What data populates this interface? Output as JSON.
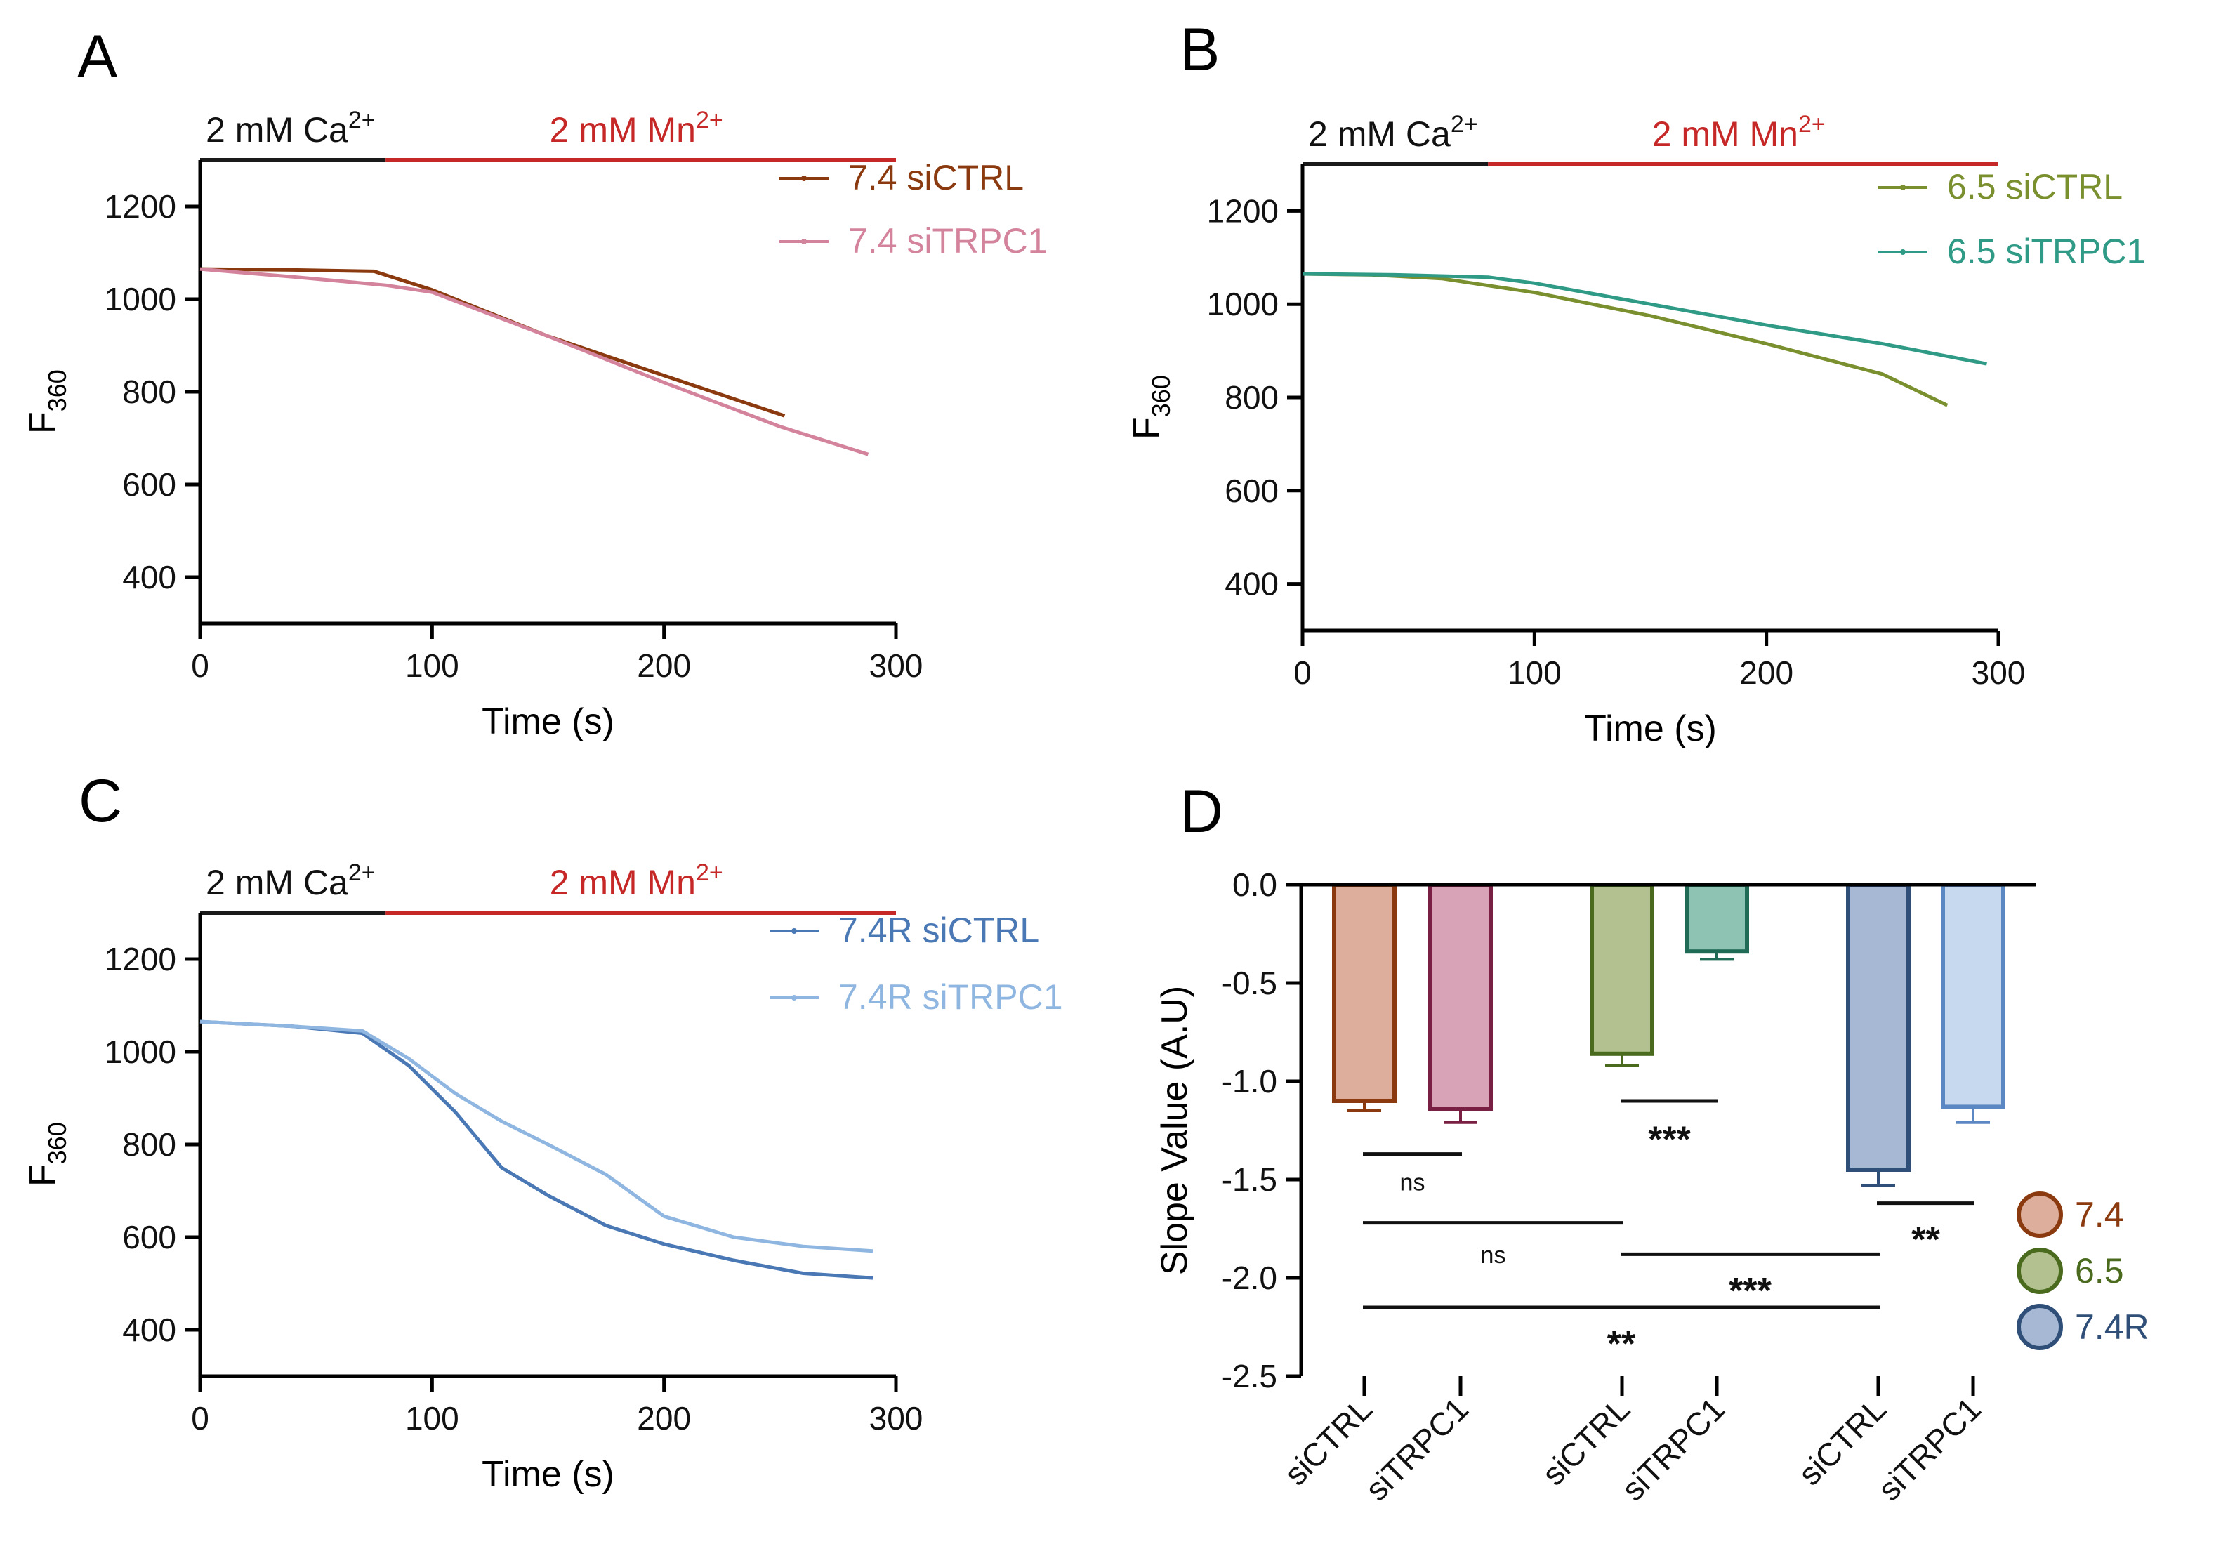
{
  "figure": {
    "panels": [
      {
        "letter": "A",
        "treatment": {
          "ca_prefix": "2 mM Ca",
          "ca_sup": "2+",
          "mn_prefix": "2 mM Mn",
          "mn_sup": "2+"
        },
        "colors": {
          "ca_bar": "#1a1a1a",
          "mn_bar": "#c62828",
          "mn_text": "#c62828"
        }
      },
      {
        "letter": "B",
        "treatment": {
          "ca_prefix": "2 mM Ca",
          "ca_sup": "2+",
          "mn_prefix": "2 mM Mn",
          "mn_sup": "2+"
        },
        "colors": {
          "ca_bar": "#1a1a1a",
          "mn_bar": "#c62828",
          "mn_text": "#c62828"
        }
      },
      {
        "letter": "C",
        "treatment": {
          "ca_prefix": "2 mM Ca",
          "ca_sup": "2+",
          "mn_prefix": "2 mM Mn",
          "mn_sup": "2+"
        },
        "colors": {
          "ca_bar": "#1a1a1a",
          "mn_bar": "#c62828",
          "mn_text": "#c62828"
        }
      },
      {
        "letter": "D"
      }
    ]
  },
  "chart_data": [
    {
      "type": "line",
      "panel": "A",
      "xlabel": "Time (s)",
      "ylabel_main": "F",
      "ylabel_sub": "360",
      "xlim": [
        0,
        300
      ],
      "ylim": [
        300,
        1300
      ],
      "xticks": [
        0,
        100,
        200,
        300
      ],
      "yticks": [
        400,
        600,
        800,
        1000,
        1200
      ],
      "treatment_switch_x": 80,
      "legend_position": "top-right",
      "series": [
        {
          "name": "7.4 siCTRL",
          "color": "#8b3a0f",
          "x": [
            0,
            40,
            75,
            100,
            150,
            200,
            252
          ],
          "y": [
            1065,
            1063,
            1060,
            1020,
            920,
            835,
            748
          ]
        },
        {
          "name": "7.4 siTRPC1",
          "color": "#d4839c",
          "x": [
            0,
            40,
            80,
            100,
            150,
            200,
            250,
            288
          ],
          "y": [
            1065,
            1048,
            1030,
            1015,
            920,
            820,
            725,
            665
          ]
        }
      ]
    },
    {
      "type": "line",
      "panel": "B",
      "xlabel": "Time (s)",
      "ylabel_main": "F",
      "ylabel_sub": "360",
      "xlim": [
        0,
        300
      ],
      "ylim": [
        300,
        1300
      ],
      "xticks": [
        0,
        100,
        200,
        300
      ],
      "yticks": [
        400,
        600,
        800,
        1000,
        1200
      ],
      "treatment_switch_x": 80,
      "legend_position": "top-right",
      "series": [
        {
          "name": "6.5 siCTRL",
          "color": "#7a8f2e",
          "x": [
            0,
            30,
            60,
            100,
            150,
            200,
            250,
            278
          ],
          "y": [
            1065,
            1063,
            1055,
            1025,
            975,
            915,
            850,
            783
          ]
        },
        {
          "name": "6.5 siTRPC1",
          "color": "#2f9a86",
          "x": [
            0,
            40,
            80,
            100,
            150,
            200,
            250,
            295
          ],
          "y": [
            1065,
            1063,
            1058,
            1045,
            1000,
            955,
            915,
            872
          ]
        }
      ]
    },
    {
      "type": "line",
      "panel": "C",
      "xlabel": "Time (s)",
      "ylabel_main": "F",
      "ylabel_sub": "360",
      "xlim": [
        0,
        300
      ],
      "ylim": [
        300,
        1300
      ],
      "xticks": [
        0,
        100,
        200,
        300
      ],
      "yticks": [
        400,
        600,
        800,
        1000,
        1200
      ],
      "treatment_switch_x": 80,
      "legend_position": "top-right",
      "series": [
        {
          "name": "7.4R siCTRL",
          "color": "#4a78b5",
          "x": [
            0,
            40,
            70,
            90,
            110,
            130,
            150,
            175,
            200,
            230,
            260,
            290
          ],
          "y": [
            1065,
            1055,
            1040,
            970,
            870,
            750,
            690,
            625,
            585,
            550,
            522,
            512
          ]
        },
        {
          "name": "7.4R siTRPC1",
          "color": "#8fb6e0",
          "x": [
            0,
            40,
            70,
            90,
            110,
            130,
            150,
            175,
            200,
            230,
            260,
            290
          ],
          "y": [
            1065,
            1055,
            1045,
            985,
            910,
            850,
            800,
            735,
            645,
            600,
            580,
            570
          ]
        }
      ]
    },
    {
      "type": "bar",
      "panel": "D",
      "ylabel": "Slope Value (A.U)",
      "ylim": [
        -2.5,
        0
      ],
      "yticks": [
        0.0,
        -0.5,
        -1.0,
        -1.5,
        -2.0,
        -2.5
      ],
      "ytick_labels": [
        "0.0",
        "-0.5",
        "-1.0",
        "-1.5",
        "-2.0",
        "-2.5"
      ],
      "categories": [
        "siCTRL",
        "siTRPC1",
        "siCTRL",
        "siTRPC1",
        "siCTRL",
        "siTRPC1"
      ],
      "values": [
        -1.1,
        -1.14,
        -0.86,
        -0.34,
        -1.45,
        -1.13
      ],
      "errors": [
        0.05,
        0.07,
        0.06,
        0.04,
        0.08,
        0.08
      ],
      "fill_colors": [
        "#dcae9b",
        "#d8a3b6",
        "#b2c18f",
        "#8ec2b2",
        "#a6b8d3",
        "#c7d9ee"
      ],
      "edge_colors": [
        "#8b3a0f",
        "#7a1f44",
        "#4a6a1e",
        "#1f6b55",
        "#2f4f78",
        "#5b88c2"
      ],
      "groups": [
        {
          "name": "7.4",
          "fill": "#dcae9b",
          "edge": "#8b3a0f",
          "text_color": "#8b3a0f"
        },
        {
          "name": "6.5",
          "fill": "#b2c18f",
          "edge": "#4a6a1e",
          "text_color": "#4a6a1e"
        },
        {
          "name": "7.4R",
          "fill": "#a6b8d3",
          "edge": "#2f4f78",
          "text_color": "#2f4f78"
        }
      ],
      "legend_position": "right",
      "significance": [
        {
          "from_bar": 0,
          "to_bar": 1,
          "y": -1.37,
          "label": "ns",
          "label_y": -1.52
        },
        {
          "from_bar": 2,
          "to_bar": 3,
          "y": -1.1,
          "label": "***",
          "label_y": -1.28
        },
        {
          "from_bar": 4,
          "to_bar": 5,
          "y": -1.62,
          "label": "**",
          "label_y": -1.79
        },
        {
          "from_bar": 0,
          "to_bar": 2,
          "y": -1.72,
          "label": "ns",
          "label_y": -1.89
        },
        {
          "from_bar": 2,
          "to_bar": 4,
          "y": -1.88,
          "label": "***",
          "label_y": -2.05
        },
        {
          "from_bar": 0,
          "to_bar": 4,
          "y": -2.15,
          "label": "**",
          "label_y": -2.32
        }
      ]
    }
  ]
}
